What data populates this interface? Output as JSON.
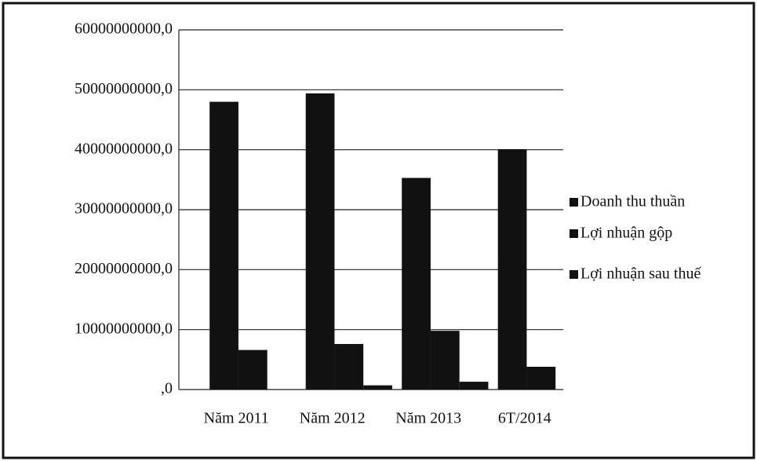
{
  "chart_data": {
    "type": "bar",
    "categories": [
      "Năm 2011",
      "Năm 2012",
      "Năm 2013",
      "6T/2014"
    ],
    "series": [
      {
        "name": "Doanh thu thuần",
        "color": "#111111",
        "values": [
          48000000000,
          49400000000,
          35300000000,
          40100000000
        ]
      },
      {
        "name": "Lợi nhuận gộp",
        "color": "#111111",
        "values": [
          6600000000,
          7600000000,
          9800000000,
          3800000000
        ]
      },
      {
        "name": "Lợi nhuận sau thuế",
        "color": "#111111",
        "values": [
          0,
          700000000,
          1300000000,
          0
        ]
      }
    ],
    "ylim": [
      0,
      60000000000
    ],
    "yticks": [
      {
        "value": 0,
        "label": ",0"
      },
      {
        "value": 10000000000,
        "label": "10000000000,0"
      },
      {
        "value": 20000000000,
        "label": "20000000000,0"
      },
      {
        "value": 30000000000,
        "label": "30000000000,0"
      },
      {
        "value": 40000000000,
        "label": "40000000000,0"
      },
      {
        "value": 50000000000,
        "label": "50000000000,0"
      },
      {
        "value": 60000000000,
        "label": "60000000000,0"
      }
    ],
    "grid": true,
    "legend": "right"
  }
}
